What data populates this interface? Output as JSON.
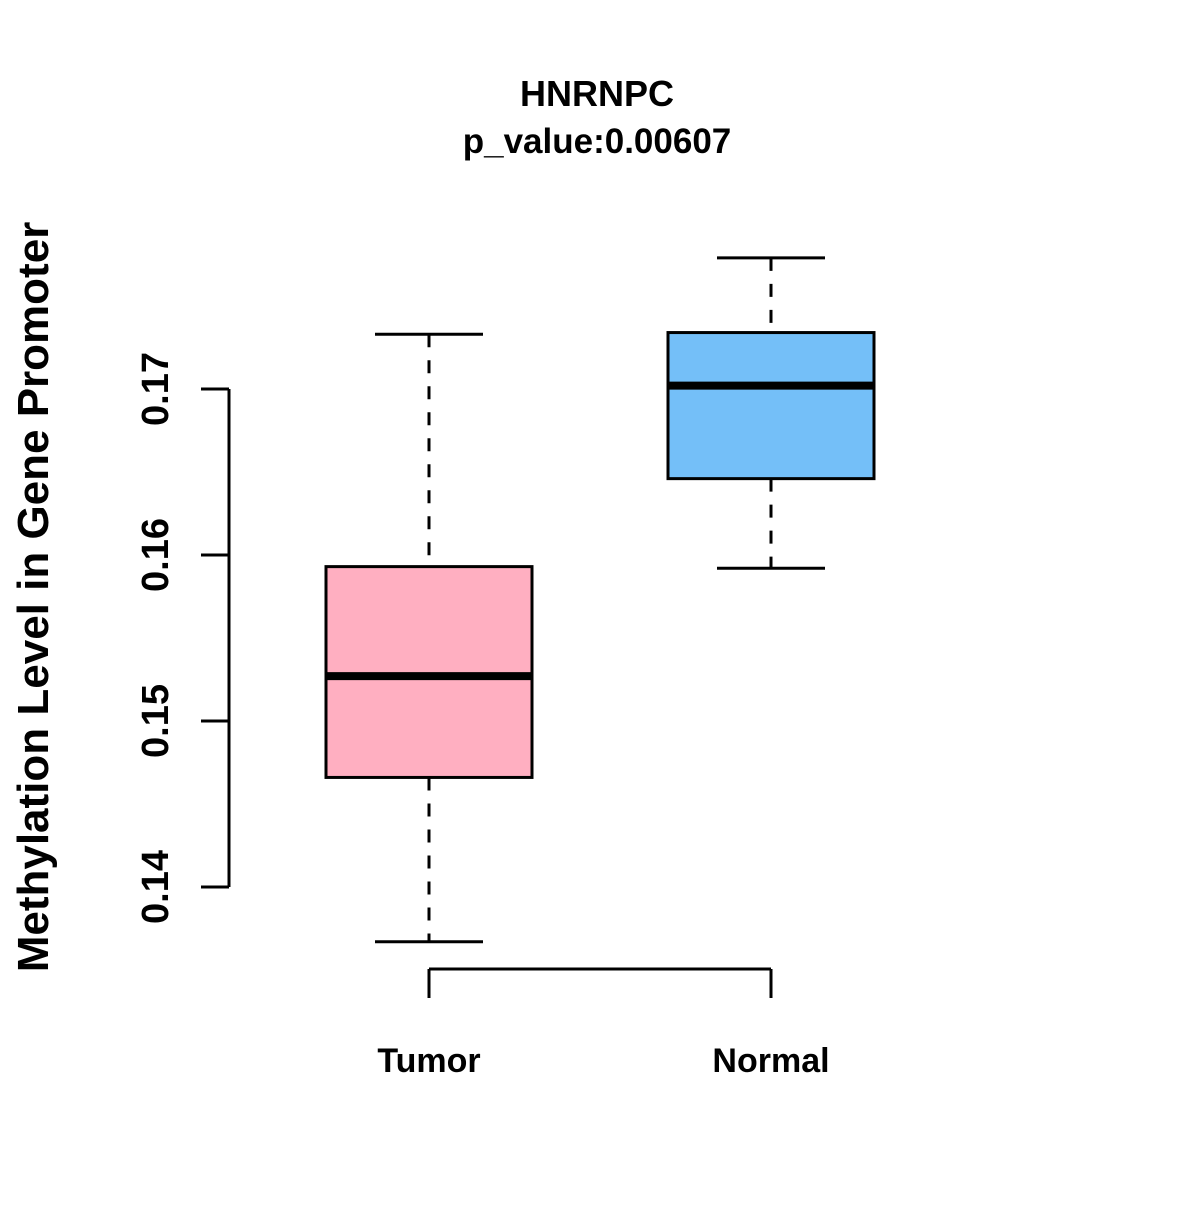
{
  "figure": {
    "title": "HNRNPC",
    "subtitle": "p_value:0.00607"
  },
  "chart_data": {
    "type": "box",
    "title": "HNRNPC",
    "subtitle": "p_value:0.00607",
    "xlabel": "",
    "ylabel": "Methylation Level in Gene Promoter",
    "categories": [
      "Tumor",
      "Normal"
    ],
    "yticks": [
      0.17,
      0.16,
      0.15,
      0.14
    ],
    "ytick_labels": [
      "0.17",
      "0.16",
      "0.15",
      "0.14"
    ],
    "ylim": [
      0.135,
      0.179
    ],
    "grid": false,
    "legend": "none",
    "whisker_style": "dashed",
    "groups": [
      {
        "name": "Tumor",
        "color": "#FFAFC1",
        "lower_whisker": 0.1367,
        "q1": 0.1466,
        "median": 0.1527,
        "q3": 0.1593,
        "upper_whisker": 0.1733
      },
      {
        "name": "Normal",
        "color": "#74BFF8",
        "lower_whisker": 0.1592,
        "q1": 0.1646,
        "median": 0.1702,
        "q3": 0.1734,
        "upper_whisker": 0.1779
      }
    ],
    "colors": {
      "tumor_box": "#FFAFC1",
      "normal_box": "#74BFF8",
      "stroke": "#000000",
      "background": "#FFFFFF"
    }
  }
}
